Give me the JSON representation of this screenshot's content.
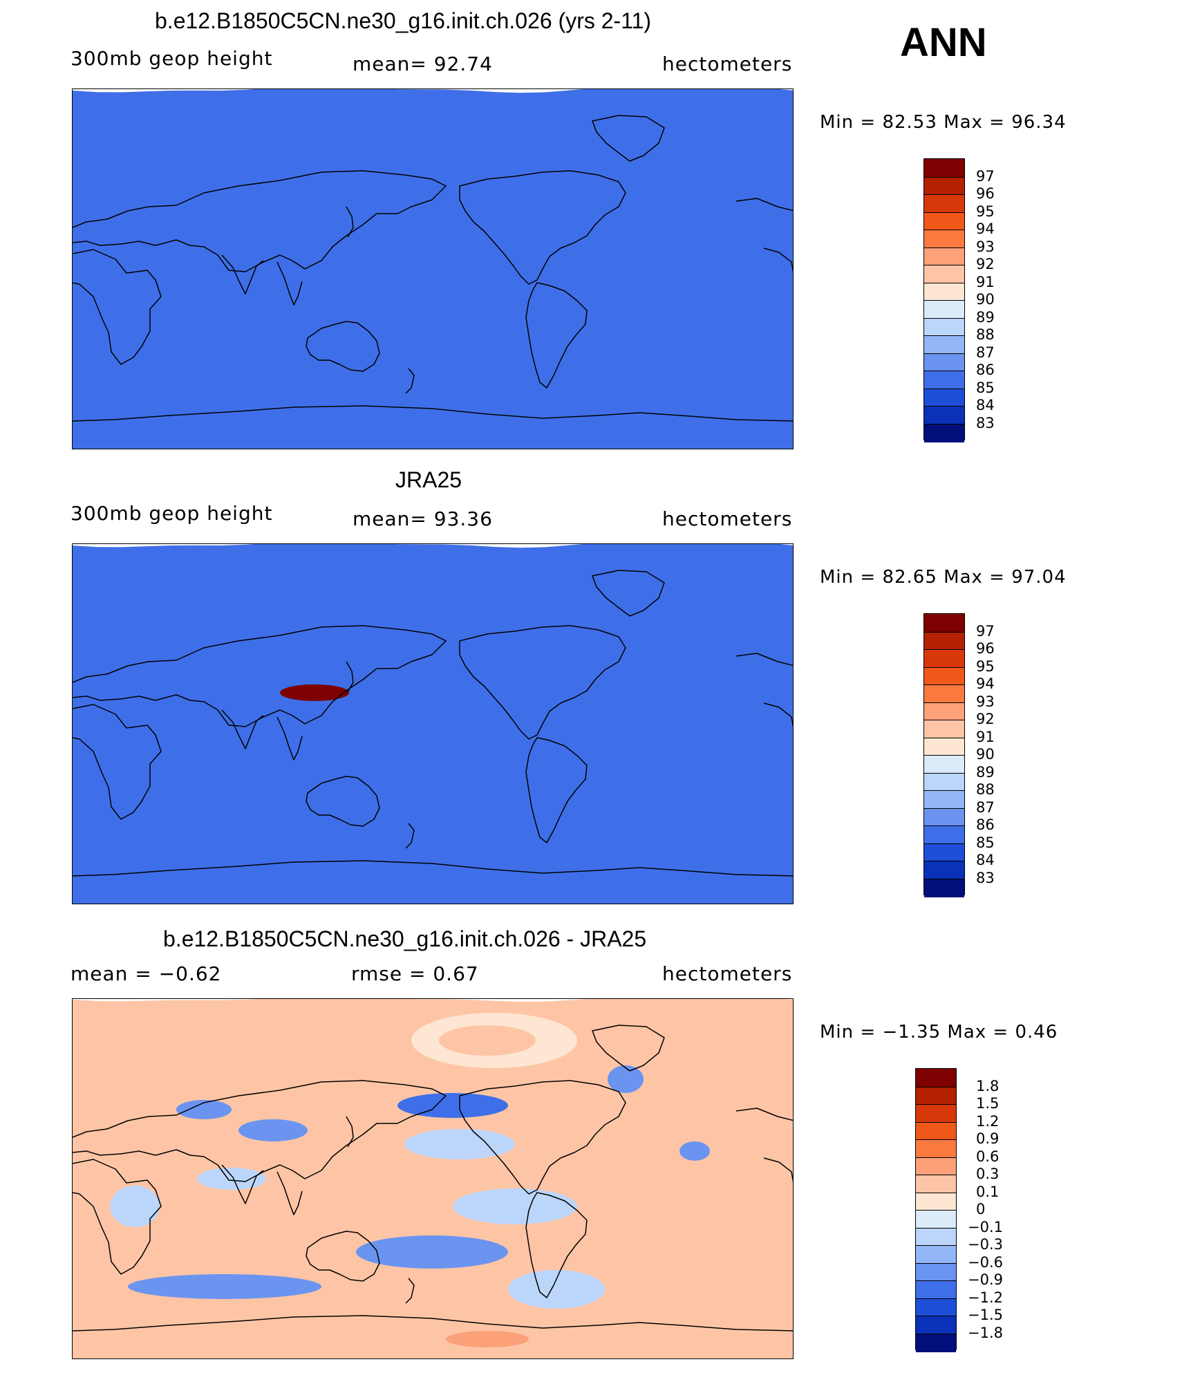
{
  "season": "ANN",
  "panels": [
    {
      "title": "b.e12.B1850C5CN.ne30_g16.init.ch.026 (yrs 2-11)",
      "left_label": "300mb  geop  height",
      "center_label": "mean=   92.74",
      "right_label": "hectometers",
      "minmax": "Min  =    82.53  Max  =    96.34",
      "colorbar_labels": [
        "97",
        "96",
        "95",
        "94",
        "93",
        "92",
        "91",
        "90",
        "89",
        "88",
        "87",
        "86",
        "85",
        "84",
        "83"
      ],
      "variant": "model"
    },
    {
      "title": "JRA25",
      "left_label": "300mb  geop  height",
      "center_label": "mean=   93.36",
      "right_label": "hectometers",
      "minmax": "Min  =    82.65  Max  =    97.04",
      "colorbar_labels": [
        "97",
        "96",
        "95",
        "94",
        "93",
        "92",
        "91",
        "90",
        "89",
        "88",
        "87",
        "86",
        "85",
        "84",
        "83"
      ],
      "variant": "obs"
    },
    {
      "title": "b.e12.B1850C5CN.ne30_g16.init.ch.026 - JRA25",
      "left_label": "mean  =    −0.62",
      "center_label": "rmse  =     0.67",
      "right_label": "hectometers",
      "minmax": "Min  =   −1.35  Max  =     0.46",
      "colorbar_labels": [
        "1.8",
        "1.5",
        "1.2",
        "0.9",
        "0.6",
        "0.3",
        "0.1",
        "0",
        "−0.1",
        "−0.3",
        "−0.6",
        "−0.9",
        "−1.2",
        "−1.5",
        "−1.8"
      ],
      "variant": "diff"
    }
  ],
  "palette": [
    "#7f0000",
    "#b32100",
    "#d9380b",
    "#f0581a",
    "#fa7a3f",
    "#fca17a",
    "#fdc5a6",
    "#fde6d2",
    "#dcebfa",
    "#bcd5fa",
    "#93b6f6",
    "#6a94f0",
    "#3f6fe8",
    "#1f4ed8",
    "#0a32b8",
    "#020f7a"
  ]
}
